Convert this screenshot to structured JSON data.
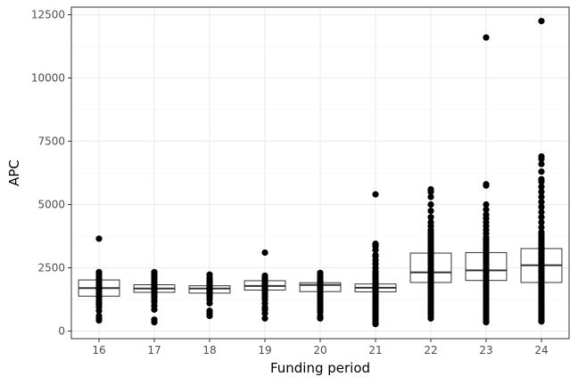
{
  "chart_data": {
    "type": "boxplot",
    "title": "",
    "xlabel": "Funding period",
    "ylabel": "APC",
    "ylim": [
      -300,
      12800
    ],
    "yticks": [
      0,
      2500,
      5000,
      7500,
      10000,
      12500
    ],
    "ytick_labels": [
      "0",
      "2500",
      "5000",
      "7500",
      "10000",
      "12500"
    ],
    "grid": true,
    "categories": [
      "16",
      "17",
      "18",
      "19",
      "20",
      "21",
      "22",
      "23",
      "24"
    ],
    "boxes": [
      {
        "category": "16",
        "q1": 1380,
        "median": 1700,
        "q3": 2020,
        "whisker_low": 950,
        "whisker_high": 2330
      },
      {
        "category": "17",
        "q1": 1530,
        "median": 1680,
        "q3": 1830,
        "whisker_low": 1150,
        "whisker_high": 2280
      },
      {
        "category": "18",
        "q1": 1500,
        "median": 1680,
        "q3": 1790,
        "whisker_low": 1080,
        "whisker_high": 2230
      },
      {
        "category": "19",
        "q1": 1620,
        "median": 1780,
        "q3": 1990,
        "whisker_low": 1100,
        "whisker_high": 2190
      },
      {
        "category": "20",
        "q1": 1560,
        "median": 1820,
        "q3": 1910,
        "whisker_low": 1100,
        "whisker_high": 2300
      },
      {
        "category": "21",
        "q1": 1550,
        "median": 1710,
        "q3": 1860,
        "whisker_low": 1100,
        "whisker_high": 2350
      },
      {
        "category": "22",
        "q1": 1920,
        "median": 2320,
        "q3": 3080,
        "whisker_low": 500,
        "whisker_high": 4700
      },
      {
        "category": "23",
        "q1": 2000,
        "median": 2400,
        "q3": 3100,
        "whisker_low": 400,
        "whisker_high": 4800
      },
      {
        "category": "24",
        "q1": 1920,
        "median": 2600,
        "q3": 3260,
        "whisker_low": 380,
        "whisker_high": 5300
      }
    ],
    "points": [
      {
        "category": "16",
        "values": [
          3650,
          2330,
          2250,
          2150,
          2050,
          1950,
          1850,
          1750,
          1700,
          1650,
          1550,
          1450,
          1350,
          1250,
          1150,
          1050,
          950,
          800,
          600,
          500,
          420
        ]
      },
      {
        "category": "17",
        "values": [
          2330,
          2250,
          2150,
          2050,
          1950,
          1850,
          1780,
          1700,
          1650,
          1600,
          1550,
          1500,
          1450,
          1350,
          1250,
          1150,
          1000,
          850,
          450,
          350
        ]
      },
      {
        "category": "18",
        "values": [
          2230,
          2100,
          2000,
          1950,
          1850,
          1800,
          1750,
          1700,
          1650,
          1600,
          1550,
          1500,
          1450,
          1350,
          1250,
          1100,
          800,
          700,
          600
        ]
      },
      {
        "category": "19",
        "values": [
          3100,
          2190,
          2100,
          2050,
          1950,
          1900,
          1850,
          1800,
          1750,
          1700,
          1650,
          1550,
          1450,
          1350,
          1250,
          1100,
          950,
          850,
          700,
          500
        ]
      },
      {
        "category": "20",
        "values": [
          2300,
          2200,
          2100,
          2000,
          1950,
          1900,
          1850,
          1800,
          1750,
          1700,
          1650,
          1550,
          1450,
          1350,
          1250,
          1150,
          1050,
          950,
          850,
          750,
          600,
          500
        ]
      },
      {
        "category": "21",
        "values": [
          5400,
          3450,
          3400,
          3350,
          3200,
          3000,
          2950,
          2800,
          2650,
          2500,
          2350,
          2250,
          2150,
          2050,
          1950,
          1850,
          1750,
          1650,
          1550,
          1450,
          1350,
          1250,
          1150,
          1050,
          950,
          850,
          750,
          650,
          550,
          450,
          350,
          280
        ]
      },
      {
        "category": "22",
        "values": [
          5600,
          5500,
          5300,
          5000,
          4750,
          4500,
          4300,
          4150,
          4000,
          3900,
          3800,
          3700,
          3600,
          3500,
          3400,
          3300,
          3200,
          3100,
          3000,
          2900,
          2800,
          2700,
          2600,
          2500,
          2400,
          2300,
          2200,
          2100,
          2000,
          1900,
          1800,
          1700,
          1600,
          1500,
          1400,
          1300,
          1200,
          1100,
          1000,
          900,
          800,
          700,
          600,
          500
        ]
      },
      {
        "category": "23",
        "values": [
          11600,
          5800,
          5750,
          5000,
          4800,
          4600,
          4450,
          4300,
          4150,
          4000,
          3850,
          3700,
          3600,
          3500,
          3400,
          3300,
          3200,
          3100,
          3000,
          2900,
          2800,
          2700,
          2600,
          2500,
          2400,
          2300,
          2200,
          2100,
          2000,
          1900,
          1800,
          1700,
          1600,
          1500,
          1400,
          1300,
          1200,
          1100,
          1000,
          900,
          800,
          700,
          600,
          500,
          400,
          350
        ]
      },
      {
        "category": "24",
        "values": [
          12250,
          6900,
          6800,
          6600,
          6300,
          6000,
          5900,
          5700,
          5500,
          5300,
          5100,
          4900,
          4700,
          4500,
          4300,
          4100,
          3900,
          3800,
          3700,
          3600,
          3500,
          3400,
          3300,
          3200,
          3100,
          3000,
          2900,
          2800,
          2700,
          2600,
          2500,
          2400,
          2300,
          2200,
          2100,
          2000,
          1900,
          1800,
          1700,
          1600,
          1500,
          1400,
          1300,
          1200,
          1100,
          1000,
          900,
          800,
          700,
          600,
          500,
          400,
          380
        ]
      }
    ]
  }
}
